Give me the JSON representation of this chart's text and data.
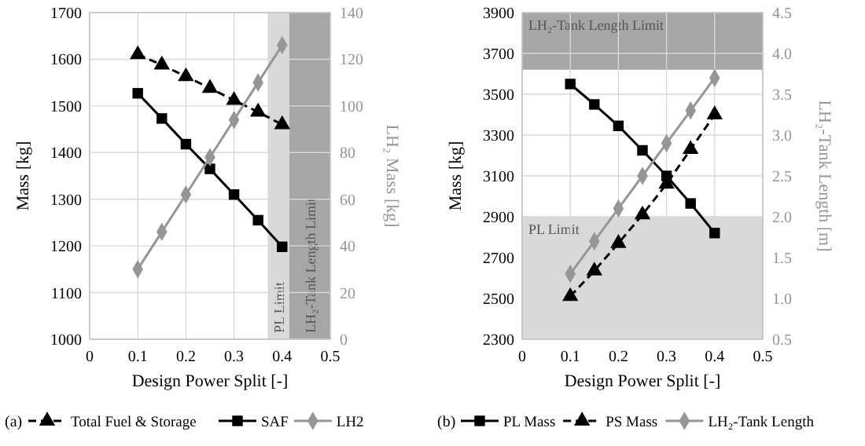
{
  "chart_data": [
    {
      "type": "line",
      "xlabel": "Design Power Split [-]",
      "ylabel": "Mass [kg]",
      "y2label": "LH₂ Mass [kg]",
      "x": [
        0.1,
        0.15,
        0.2,
        0.25,
        0.3,
        0.35,
        0.4
      ],
      "xlim": [
        0,
        0.5
      ],
      "xticks": [
        0,
        0.1,
        0.2,
        0.3,
        0.4,
        0.5
      ],
      "ylim": [
        1000,
        1700
      ],
      "yticks": [
        1000,
        1100,
        1200,
        1300,
        1400,
        1500,
        1600,
        1700
      ],
      "y2lim": [
        0,
        140
      ],
      "y2ticks": [
        0,
        20,
        40,
        60,
        80,
        100,
        120,
        140
      ],
      "grid": true,
      "legend": "bottom",
      "annotations": [
        "(a)"
      ],
      "bands": [
        {
          "axis": "x",
          "from": 0.37,
          "to": 0.415,
          "label": "PL Limit",
          "color": "#d9d9d9"
        },
        {
          "axis": "x",
          "from": 0.415,
          "to": 0.5,
          "label": "LH₂-Tank Length Limit",
          "color": "#a6a6a6"
        }
      ],
      "series": [
        {
          "name": "Total Fuel & Storage",
          "color": "#000000",
          "marker": "triangle",
          "line_style": "dashed",
          "values": [
            1610,
            1588,
            1563,
            1538,
            1512,
            1487,
            1460
          ]
        },
        {
          "name": "SAF",
          "color": "#000000",
          "marker": "square",
          "line_style": "solid",
          "values": [
            1527,
            1473,
            1418,
            1365,
            1310,
            1255,
            1198
          ]
        },
        {
          "name": "LH2",
          "color": "#969696",
          "marker": "diamond",
          "line_style": "solid",
          "axis": "y2",
          "values": [
            30,
            46,
            62,
            78,
            94,
            110,
            126
          ]
        }
      ]
    },
    {
      "type": "line",
      "xlabel": "Design Power Split [-]",
      "ylabel": "Mass [kg]",
      "y2label": "LH₂-Tank Length [m]",
      "x": [
        0.1,
        0.15,
        0.2,
        0.25,
        0.3,
        0.35,
        0.4
      ],
      "xlim": [
        0,
        0.5
      ],
      "xticks": [
        0,
        0.1,
        0.2,
        0.3,
        0.4,
        0.5
      ],
      "ylim": [
        2300,
        3900
      ],
      "yticks": [
        2300,
        2500,
        2700,
        2900,
        3100,
        3300,
        3500,
        3700,
        3900
      ],
      "y2lim": [
        0.5,
        4.5
      ],
      "y2ticks": [
        0.5,
        {
          "value": 1,
          "label": "1.0"
        },
        1.5,
        {
          "value": 2,
          "label": "2.0"
        },
        2.5,
        {
          "value": 3,
          "label": "3.0"
        },
        3.5,
        {
          "value": 4,
          "label": "4.0"
        },
        4.5
      ],
      "grid": true,
      "legend": "bottom",
      "annotations": [
        "(b)"
      ],
      "bands": [
        {
          "axis": "y",
          "from": 2300,
          "to": 2900,
          "label": "PL Limit",
          "color": "#d9d9d9"
        },
        {
          "axis": "y",
          "from": 3620,
          "to": 3900,
          "label": "LH₂-Tank Length Limit",
          "color": "#a6a6a6"
        }
      ],
      "series": [
        {
          "name": "PL Mass",
          "color": "#000000",
          "marker": "square",
          "line_style": "solid",
          "values": [
            3550,
            3450,
            3345,
            3225,
            3100,
            2965,
            2820
          ]
        },
        {
          "name": "PS Mass",
          "color": "#000000",
          "marker": "triangle",
          "line_style": "dashed",
          "values": [
            2510,
            2635,
            2770,
            2910,
            3060,
            3230,
            3400
          ]
        },
        {
          "name": "LH₂-Tank Length",
          "color": "#969696",
          "marker": "diamond",
          "line_style": "solid",
          "axis": "y2",
          "values": [
            1.3,
            1.7,
            2.1,
            2.5,
            2.9,
            3.3,
            3.7
          ]
        }
      ]
    }
  ]
}
